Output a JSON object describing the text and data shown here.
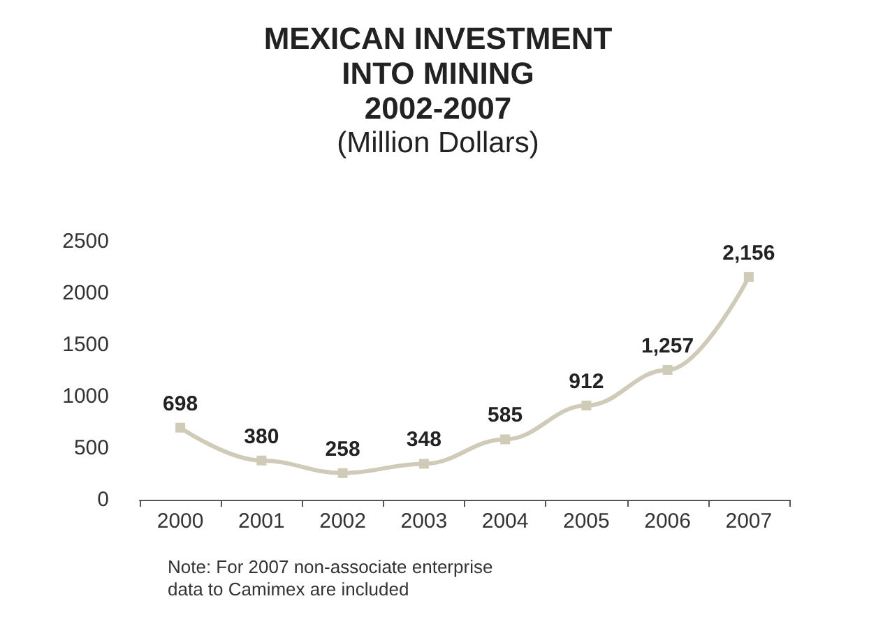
{
  "chart_data": {
    "type": "line",
    "title": "MEXICAN INVESTMENT\nINTO MINING\n2002-2007",
    "subtitle": "(Million Dollars)",
    "categories": [
      "2000",
      "2001",
      "2002",
      "2003",
      "2004",
      "2005",
      "2006",
      "2007"
    ],
    "series": [
      {
        "color": "#cfcbb8",
        "values": [
          698,
          380,
          258,
          348,
          585,
          912,
          1257,
          2156
        ],
        "value_labels": [
          "698",
          "380",
          "258",
          "348",
          "585",
          "912",
          "1,257",
          "2,156"
        ]
      }
    ],
    "ylim": [
      0,
      2500
    ],
    "yticks": [
      0,
      500,
      1000,
      1500,
      2000,
      2500
    ],
    "grid": false,
    "marker": "square",
    "line_style": "solid",
    "annotations": [
      "Note: For 2007 non-associate enterprise\ndata to Camimex are included"
    ]
  }
}
